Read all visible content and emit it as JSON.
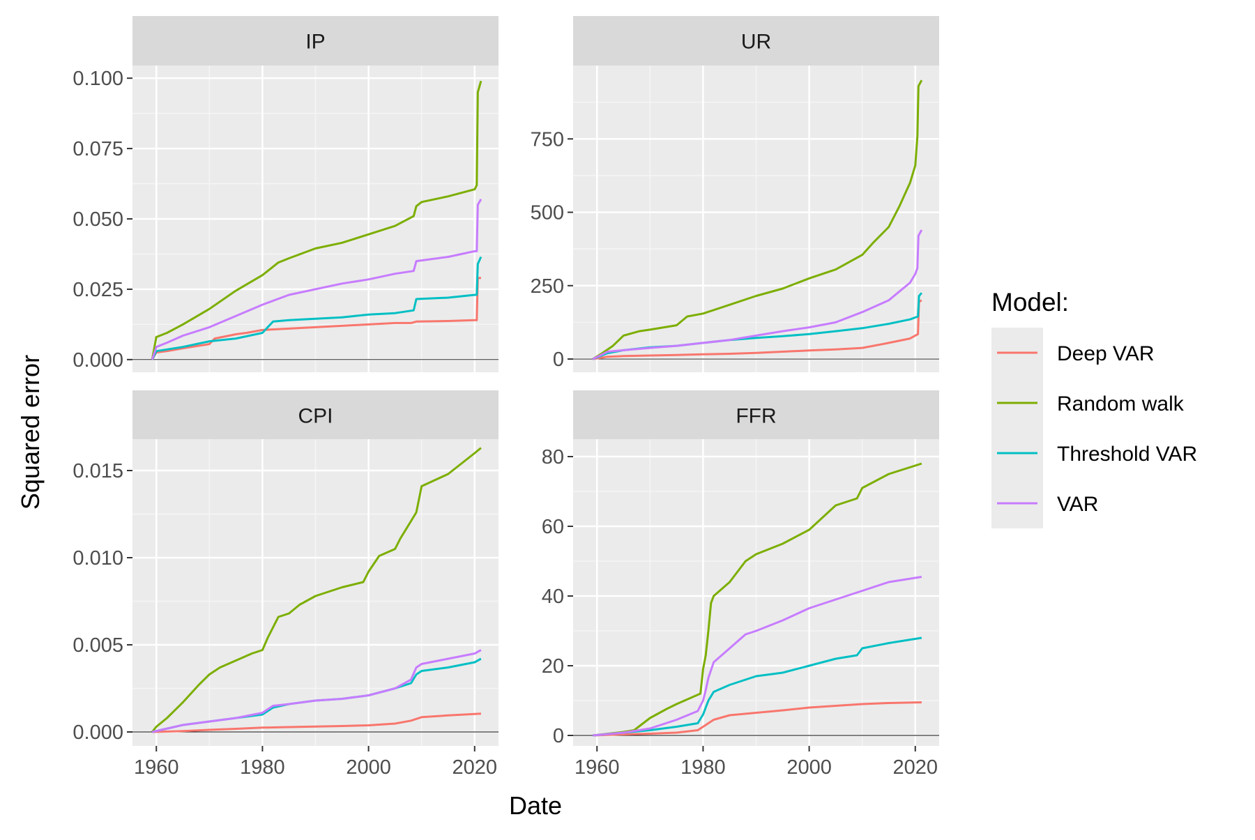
{
  "chart_data": {
    "type": "line",
    "xlabel": "Date",
    "ylabel": "Squared error",
    "legend": {
      "title": "Model:",
      "position": "right",
      "entries": [
        {
          "name": "Deep VAR",
          "color": "#F8766D"
        },
        {
          "name": "Random walk",
          "color": "#7CAE00"
        },
        {
          "name": "Threshold VAR",
          "color": "#00BFC4"
        },
        {
          "name": "VAR",
          "color": "#C77CFF"
        }
      ]
    },
    "grid": true,
    "x_ticks": [
      1960,
      1980,
      2000,
      2020
    ],
    "panels": [
      {
        "title": "IP",
        "xlim": [
          1955.5,
          2024.5
        ],
        "ylim": [
          -0.0045,
          0.1045
        ],
        "y_ticks": [
          0.0,
          0.025,
          0.05,
          0.075,
          0.1
        ],
        "y_tick_labels": [
          "0.000",
          "0.025",
          "0.050",
          "0.075",
          "0.100"
        ],
        "series": [
          {
            "name": "Deep VAR",
            "x": [
              1959.2,
              1960,
              1962,
              1965,
              1970,
              1971,
              1975,
              1977,
              1980,
              1985,
              1990,
              1995,
              2000,
              2005,
              2008,
              2009,
              2015,
              2020,
              2020.4,
              2020.6,
              2021.2
            ],
            "y": [
              0.0,
              0.0025,
              0.003,
              0.004,
              0.0055,
              0.0075,
              0.009,
              0.0095,
              0.0105,
              0.011,
              0.0115,
              0.012,
              0.0125,
              0.013,
              0.013,
              0.0135,
              0.0137,
              0.014,
              0.014,
              0.029,
              0.029
            ]
          },
          {
            "name": "Random walk",
            "x": [
              1959.2,
              1960,
              1962,
              1965,
              1970,
              1975,
              1980,
              1983,
              1985,
              1990,
              1995,
              2000,
              2005,
              2008.5,
              2009,
              2010,
              2015,
              2020,
              2020.4,
              2020.6,
              2021.2
            ],
            "y": [
              0.0,
              0.008,
              0.0095,
              0.0125,
              0.018,
              0.0245,
              0.03,
              0.0345,
              0.036,
              0.0395,
              0.0415,
              0.0445,
              0.0475,
              0.051,
              0.0545,
              0.056,
              0.058,
              0.0605,
              0.062,
              0.095,
              0.099
            ]
          },
          {
            "name": "Threshold VAR",
            "x": [
              1959.2,
              1960,
              1965,
              1970,
              1975,
              1980,
              1982,
              1985,
              1990,
              1995,
              2000,
              2005,
              2008.5,
              2009,
              2015,
              2020,
              2020.4,
              2020.6,
              2021.2
            ],
            "y": [
              0.0,
              0.003,
              0.0045,
              0.0065,
              0.0075,
              0.0095,
              0.0135,
              0.014,
              0.0145,
              0.015,
              0.016,
              0.0165,
              0.0175,
              0.0215,
              0.022,
              0.023,
              0.023,
              0.034,
              0.0365
            ]
          },
          {
            "name": "VAR",
            "x": [
              1959.2,
              1960,
              1962,
              1965,
              1970,
              1975,
              1980,
              1985,
              1990,
              1995,
              2000,
              2005,
              2008.5,
              2009,
              2015,
              2020,
              2020.4,
              2020.6,
              2021.2
            ],
            "y": [
              0.0,
              0.0045,
              0.006,
              0.0085,
              0.0115,
              0.0155,
              0.0195,
              0.023,
              0.025,
              0.027,
              0.0285,
              0.0305,
              0.0315,
              0.035,
              0.0365,
              0.0385,
              0.0385,
              0.055,
              0.057
            ]
          }
        ]
      },
      {
        "title": "UR",
        "xlim": [
          1955.5,
          2024.5
        ],
        "ylim": [
          -45,
          1000
        ],
        "y_ticks": [
          0,
          250,
          500,
          750
        ],
        "y_tick_labels": [
          "0",
          "250",
          "500",
          "750"
        ],
        "series": [
          {
            "name": "Deep VAR",
            "x": [
              1959.2,
              1962,
              1965,
              1970,
              1975,
              1980,
              1985,
              1990,
              1995,
              2000,
              2005,
              2010,
              2015,
              2019,
              2020.5,
              2020.7,
              2021.2
            ],
            "y": [
              0,
              8,
              10,
              12,
              14,
              16,
              18,
              21,
              25,
              29,
              33,
              38,
              55,
              70,
              85,
              195,
              200
            ]
          },
          {
            "name": "Random walk",
            "x": [
              1959.2,
              1961,
              1963,
              1965,
              1968,
              1970,
              1975,
              1977,
              1980,
              1985,
              1990,
              1995,
              2000,
              2005,
              2010,
              2012,
              2015,
              2017,
              2018,
              2019,
              2020,
              2020.4,
              2020.6,
              2021.2
            ],
            "y": [
              0,
              20,
              45,
              80,
              95,
              100,
              115,
              145,
              155,
              185,
              215,
              240,
              275,
              305,
              355,
              395,
              450,
              520,
              560,
              600,
              660,
              760,
              930,
              950
            ]
          },
          {
            "name": "Threshold VAR",
            "x": [
              1959.2,
              1962,
              1965,
              1970,
              1975,
              1980,
              1985,
              1990,
              1995,
              2000,
              2005,
              2010,
              2015,
              2019,
              2020.5,
              2020.7,
              2021.2
            ],
            "y": [
              0,
              20,
              30,
              40,
              45,
              55,
              65,
              72,
              78,
              85,
              95,
              105,
              120,
              135,
              145,
              215,
              225
            ]
          },
          {
            "name": "VAR",
            "x": [
              1959.2,
              1962,
              1965,
              1970,
              1975,
              1980,
              1985,
              1990,
              1995,
              2000,
              2005,
              2010,
              2015,
              2017,
              2019,
              2020,
              2020.4,
              2020.6,
              2021.2
            ],
            "y": [
              0,
              25,
              30,
              38,
              45,
              55,
              65,
              80,
              95,
              108,
              125,
              160,
              200,
              230,
              260,
              290,
              310,
              420,
              440
            ]
          }
        ]
      },
      {
        "title": "CPI",
        "xlim": [
          1955.5,
          2024.5
        ],
        "ylim": [
          -0.0008,
          0.0168
        ],
        "y_ticks": [
          0.0,
          0.005,
          0.01,
          0.015
        ],
        "y_tick_labels": [
          "0.000",
          "0.005",
          "0.010",
          "0.015"
        ],
        "series": [
          {
            "name": "Deep VAR",
            "x": [
              1959.2,
              1965,
              1970,
              1975,
              1980,
              1985,
              1990,
              1995,
              2000,
              2005,
              2008,
              2010,
              2015,
              2021.2
            ],
            "y": [
              0.0,
              5e-05,
              0.00012,
              0.00018,
              0.00025,
              0.00028,
              0.00031,
              0.00034,
              0.00038,
              0.00048,
              0.00065,
              0.00085,
              0.00095,
              0.00105
            ]
          },
          {
            "name": "Random walk",
            "x": [
              1959.2,
              1960,
              1962,
              1965,
              1968,
              1970,
              1972,
              1975,
              1978,
              1980,
              1981,
              1983,
              1985,
              1987,
              1990,
              1993,
              1995,
              1999,
              2000,
              2002,
              2005,
              2006,
              2008,
              2009,
              2010,
              2015,
              2020,
              2021.2
            ],
            "y": [
              0.0,
              0.0003,
              0.0008,
              0.0017,
              0.0027,
              0.0033,
              0.0037,
              0.0041,
              0.0045,
              0.0047,
              0.0054,
              0.0066,
              0.0068,
              0.0073,
              0.0078,
              0.0081,
              0.0083,
              0.0086,
              0.0092,
              0.0101,
              0.0105,
              0.0111,
              0.0121,
              0.0126,
              0.0141,
              0.0148,
              0.016,
              0.0163
            ]
          },
          {
            "name": "Threshold VAR",
            "x": [
              1959.2,
              1965,
              1970,
              1975,
              1980,
              1982,
              1985,
              1990,
              1995,
              2000,
              2005,
              2008,
              2009,
              2010,
              2015,
              2020,
              2021.2
            ],
            "y": [
              0.0,
              0.0004,
              0.0006,
              0.0008,
              0.001,
              0.0014,
              0.0016,
              0.0018,
              0.0019,
              0.0021,
              0.0025,
              0.0028,
              0.0033,
              0.0035,
              0.0037,
              0.004,
              0.0042
            ]
          },
          {
            "name": "VAR",
            "x": [
              1959.2,
              1965,
              1970,
              1975,
              1980,
              1982,
              1985,
              1990,
              1995,
              2000,
              2005,
              2008,
              2009,
              2010,
              2015,
              2020,
              2021.2
            ],
            "y": [
              0.0,
              0.0004,
              0.0006,
              0.0008,
              0.0011,
              0.0015,
              0.0016,
              0.0018,
              0.0019,
              0.0021,
              0.0025,
              0.003,
              0.0037,
              0.0039,
              0.0042,
              0.0045,
              0.0047
            ]
          }
        ]
      },
      {
        "title": "FFR",
        "xlim": [
          1955.5,
          2024.5
        ],
        "ylim": [
          -3,
          85
        ]
      }
    ]
  }
}
